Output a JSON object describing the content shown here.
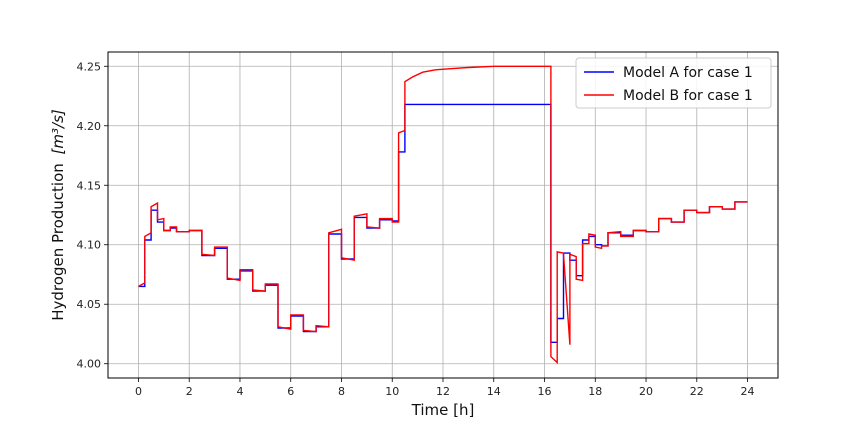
{
  "chart_data": {
    "type": "line",
    "xlabel": "Time [h]",
    "ylabel_text": "Hydrogen Production",
    "ylabel_unit": "[m³/s]",
    "xlim": [
      -1.2,
      25.2
    ],
    "ylim": [
      3.988,
      4.262
    ],
    "xticks": [
      0,
      2,
      4,
      6,
      8,
      10,
      12,
      14,
      16,
      18,
      20,
      22,
      24
    ],
    "yticks": [
      4.0,
      4.05,
      4.1,
      4.15,
      4.2,
      4.25
    ],
    "grid": true,
    "legend_position": "top-right",
    "series": [
      {
        "name": "Model A for case 1",
        "color": "#0000ff",
        "x": [
          0,
          0.25,
          0.25,
          0.5,
          0.5,
          0.75,
          0.75,
          1.0,
          1.0,
          1.25,
          1.25,
          1.5,
          1.5,
          1.75,
          1.75,
          2.0,
          2.0,
          2.5,
          2.5,
          3.0,
          3.0,
          3.5,
          3.5,
          4.0,
          4.0,
          4.5,
          4.5,
          5.0,
          5.0,
          5.5,
          5.5,
          6.0,
          6.0,
          6.5,
          6.5,
          7.0,
          7.0,
          7.5,
          7.5,
          8.0,
          8.0,
          8.5,
          8.5,
          9.0,
          9.0,
          9.5,
          9.5,
          10.0,
          10.0,
          10.25,
          10.25,
          10.5,
          10.5,
          16.25,
          16.25,
          16.5,
          16.5,
          16.75,
          16.75,
          17.0,
          17.0,
          17.25,
          17.25,
          17.5,
          17.5,
          17.75,
          17.75,
          18.0,
          18.0,
          18.25,
          18.25,
          18.5,
          18.5,
          19.0,
          19.0,
          19.5,
          19.5,
          20.0,
          20.0,
          20.5,
          20.5,
          21.0,
          21.0,
          21.5,
          21.5,
          22.0,
          22.0,
          22.5,
          22.5,
          23.0,
          23.0,
          23.5,
          23.5,
          24.0
        ],
        "y": [
          4.065,
          4.065,
          4.104,
          4.104,
          4.129,
          4.129,
          4.119,
          4.119,
          4.112,
          4.112,
          4.114,
          4.114,
          4.111,
          4.111,
          4.111,
          4.111,
          4.112,
          4.112,
          4.091,
          4.091,
          4.097,
          4.097,
          4.071,
          4.071,
          4.078,
          4.078,
          4.061,
          4.061,
          4.066,
          4.066,
          4.03,
          4.03,
          4.04,
          4.04,
          4.027,
          4.027,
          4.031,
          4.031,
          4.109,
          4.109,
          4.088,
          4.088,
          4.123,
          4.123,
          4.114,
          4.114,
          4.121,
          4.121,
          4.12,
          4.12,
          4.178,
          4.178,
          4.218,
          4.218,
          4.018,
          4.018,
          4.038,
          4.038,
          4.093,
          4.093,
          4.087,
          4.087,
          4.074,
          4.074,
          4.104,
          4.104,
          4.107,
          4.107,
          4.1,
          4.1,
          4.099,
          4.099,
          4.11,
          4.11,
          4.108,
          4.108,
          4.112,
          4.112,
          4.111,
          4.111,
          4.122,
          4.122,
          4.119,
          4.119,
          4.129,
          4.129,
          4.127,
          4.127,
          4.132,
          4.132,
          4.13,
          4.13,
          4.136,
          4.136
        ]
      },
      {
        "name": "Model B for case 1",
        "color": "#ff0000",
        "x": [
          0,
          0.25,
          0.25,
          0.5,
          0.5,
          0.75,
          0.75,
          1.0,
          1.0,
          1.25,
          1.25,
          1.5,
          1.5,
          1.75,
          1.75,
          2.0,
          2.0,
          2.5,
          2.5,
          3.0,
          3.0,
          3.5,
          3.5,
          4.0,
          4.0,
          4.5,
          4.5,
          5.0,
          5.0,
          5.5,
          5.5,
          6.0,
          6.0,
          6.5,
          6.5,
          7.0,
          7.0,
          7.5,
          7.5,
          8.0,
          8.0,
          8.5,
          8.5,
          9.0,
          9.0,
          9.5,
          9.5,
          10.0,
          10.0,
          10.25,
          10.25,
          10.5,
          10.5,
          10.8,
          11.2,
          11.7,
          12.3,
          13.0,
          14.0,
          15.0,
          16.2,
          16.25,
          16.25,
          16.5,
          16.5,
          16.75,
          16.75,
          17.0,
          17.0,
          17.25,
          17.25,
          17.5,
          17.5,
          17.75,
          17.75,
          18.0,
          18.0,
          18.25,
          18.25,
          18.5,
          18.5,
          19.0,
          19.0,
          19.5,
          19.5,
          20.0,
          20.0,
          20.5,
          20.5,
          21.0,
          21.0,
          21.5,
          21.5,
          22.0,
          22.0,
          22.5,
          22.5,
          23.0,
          23.0,
          23.5,
          23.5,
          24.0
        ],
        "y": [
          4.065,
          4.068,
          4.107,
          4.11,
          4.132,
          4.135,
          4.121,
          4.122,
          4.112,
          4.112,
          4.115,
          4.115,
          4.111,
          4.111,
          4.111,
          4.111,
          4.112,
          4.112,
          4.092,
          4.091,
          4.098,
          4.098,
          4.072,
          4.07,
          4.079,
          4.079,
          4.062,
          4.061,
          4.067,
          4.067,
          4.031,
          4.029,
          4.041,
          4.041,
          4.028,
          4.027,
          4.032,
          4.031,
          4.11,
          4.113,
          4.089,
          4.087,
          4.124,
          4.126,
          4.115,
          4.114,
          4.122,
          4.122,
          4.119,
          4.119,
          4.194,
          4.196,
          4.237,
          4.241,
          4.245,
          4.247,
          4.248,
          4.249,
          4.25,
          4.25,
          4.25,
          4.25,
          4.006,
          4.001,
          4.094,
          4.093,
          4.092,
          4.016,
          4.092,
          4.09,
          4.071,
          4.07,
          4.101,
          4.101,
          4.109,
          4.108,
          4.098,
          4.097,
          4.099,
          4.099,
          4.11,
          4.111,
          4.107,
          4.107,
          4.112,
          4.112,
          4.111,
          4.111,
          4.122,
          4.122,
          4.119,
          4.119,
          4.129,
          4.129,
          4.127,
          4.127,
          4.132,
          4.132,
          4.13,
          4.13,
          4.136,
          4.136
        ]
      }
    ]
  }
}
